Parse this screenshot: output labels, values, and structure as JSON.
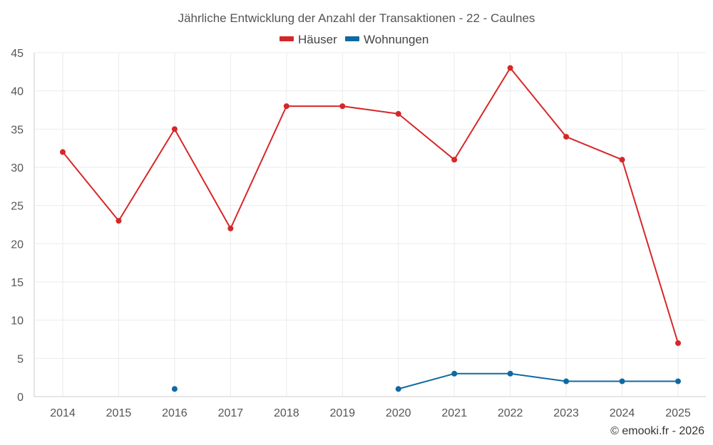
{
  "chart_data": {
    "type": "line",
    "title": "Jährliche Entwicklung der Anzahl der Transaktionen - 22 - Caulnes",
    "categories": [
      "2014",
      "2015",
      "2016",
      "2017",
      "2018",
      "2019",
      "2020",
      "2021",
      "2022",
      "2023",
      "2024",
      "2025"
    ],
    "series": [
      {
        "name": "Häuser",
        "color": "#d62728",
        "values": [
          32,
          23,
          35,
          22,
          38,
          38,
          37,
          31,
          43,
          34,
          31,
          7
        ]
      },
      {
        "name": "Wohnungen",
        "color": "#0f6aa0",
        "values": [
          null,
          null,
          1,
          null,
          null,
          null,
          1,
          3,
          3,
          2,
          2,
          2
        ]
      }
    ],
    "ylim": [
      0,
      45
    ],
    "yticks": [
      0,
      5,
      10,
      15,
      20,
      25,
      30,
      35,
      40,
      45
    ],
    "grid": true,
    "legend_position": "top-center",
    "xlabel": "",
    "ylabel": ""
  },
  "credit": "© emooki.fr - 2026"
}
